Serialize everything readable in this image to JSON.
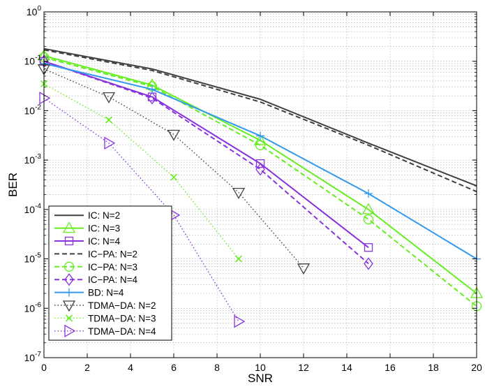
{
  "chart_data": {
    "type": "line",
    "title": "",
    "xlabel": "SNR",
    "ylabel": "BER",
    "xlim": [
      0,
      20
    ],
    "ylim": [
      1e-07,
      1
    ],
    "yscale": "log",
    "grid": true,
    "legend_position": "bottom-left",
    "x_ticks": [
      0,
      2,
      4,
      6,
      8,
      10,
      12,
      14,
      16,
      18,
      20
    ],
    "y_ticks": [
      {
        "value": 1,
        "base": "10",
        "exp": "0"
      },
      {
        "value": 0.1,
        "base": "10",
        "exp": "-1"
      },
      {
        "value": 0.01,
        "base": "10",
        "exp": "-2"
      },
      {
        "value": 0.001,
        "base": "10",
        "exp": "-3"
      },
      {
        "value": 0.0001,
        "base": "10",
        "exp": "-4"
      },
      {
        "value": 1e-05,
        "base": "10",
        "exp": "-5"
      },
      {
        "value": 1e-06,
        "base": "10",
        "exp": "-6"
      },
      {
        "value": 1e-07,
        "base": "10",
        "exp": "-7"
      }
    ],
    "series": [
      {
        "name": "IC: N=2",
        "color": "#404040",
        "dash": "solid",
        "marker": "none",
        "x": [
          0,
          5,
          10,
          15,
          20
        ],
        "y": [
          0.18,
          0.07,
          0.017,
          0.0022,
          0.0003
        ]
      },
      {
        "name": "IC: N=3",
        "color": "#66ee22",
        "dash": "solid",
        "marker": "triangle-up",
        "x": [
          0,
          5,
          10,
          15,
          20
        ],
        "y": [
          0.13,
          0.033,
          0.0025,
          0.0001,
          2e-06
        ]
      },
      {
        "name": "IC: N=4",
        "color": "#8833dd",
        "dash": "solid",
        "marker": "square",
        "x": [
          0,
          5,
          10,
          15
        ],
        "y": [
          0.1,
          0.019,
          0.00085,
          1.7e-05
        ]
      },
      {
        "name": "IC−PA: N=2",
        "color": "#404040",
        "dash": "dashed",
        "marker": "none",
        "x": [
          0,
          5,
          10,
          15,
          20
        ],
        "y": [
          0.17,
          0.065,
          0.015,
          0.002,
          0.00023
        ]
      },
      {
        "name": "IC−PA: N=3",
        "color": "#66ee22",
        "dash": "dashed",
        "marker": "circle",
        "x": [
          0,
          5,
          10,
          15,
          20
        ],
        "y": [
          0.12,
          0.031,
          0.002,
          6.3e-05,
          1.1e-06
        ]
      },
      {
        "name": "IC−PA: N=4",
        "color": "#8833dd",
        "dash": "dashed",
        "marker": "diamond",
        "x": [
          0,
          5,
          10,
          15
        ],
        "y": [
          0.1,
          0.018,
          0.00065,
          8e-06
        ]
      },
      {
        "name": "BD: N=4",
        "color": "#3399ee",
        "dash": "solid",
        "marker": "plus",
        "x": [
          0,
          5,
          10,
          15,
          20
        ],
        "y": [
          0.09,
          0.027,
          0.0031,
          0.00021,
          1e-05
        ]
      },
      {
        "name": "TDMA−DA: N=2",
        "color": "#404040",
        "dash": "dotted",
        "marker": "triangle-down",
        "x": [
          0,
          3,
          6,
          9,
          12
        ],
        "y": [
          0.07,
          0.019,
          0.0033,
          0.00022,
          6.5e-06
        ]
      },
      {
        "name": "TDMA−DA: N=3",
        "color": "#66ee22",
        "dash": "dotted",
        "marker": "x",
        "x": [
          0,
          3,
          6,
          9
        ],
        "y": [
          0.035,
          0.0065,
          0.00045,
          1e-05
        ]
      },
      {
        "name": "TDMA−DA: N=4",
        "color": "#8833dd",
        "dash": "dotted",
        "marker": "triangle-right",
        "x": [
          0,
          3,
          6,
          9
        ],
        "y": [
          0.018,
          0.0022,
          7.7e-05,
          5.4e-07
        ]
      }
    ]
  }
}
